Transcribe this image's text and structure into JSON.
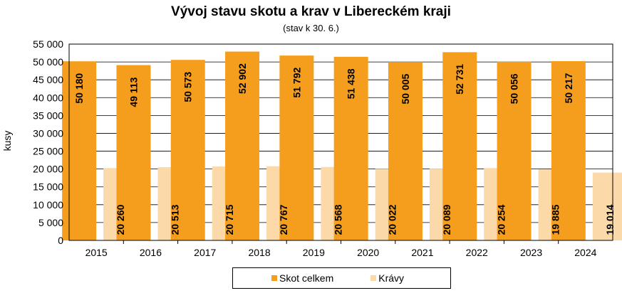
{
  "chart_data": {
    "type": "bar",
    "title": "Vývoj stavu skotu a krav v Libereckém kraji",
    "subtitle": "(stav k 30. 6.)",
    "ylabel": "kusy",
    "xlabel": "",
    "ylim": [
      0,
      55000
    ],
    "yticks": [
      "0",
      "5 000",
      "10 000",
      "15 000",
      "20 000",
      "25 000",
      "30 000",
      "35 000",
      "40 000",
      "45 000",
      "50 000",
      "55 000"
    ],
    "ytick_values": [
      0,
      5000,
      10000,
      15000,
      20000,
      25000,
      30000,
      35000,
      40000,
      45000,
      50000,
      55000
    ],
    "grid": true,
    "legend_position": "bottom",
    "categories": [
      "2015",
      "2016",
      "2017",
      "2018",
      "2019",
      "2020",
      "2021",
      "2022",
      "2023",
      "2024"
    ],
    "series": [
      {
        "name": "Skot celkem",
        "color": "#F59E1E",
        "values": [
          50180,
          49113,
          50573,
          52902,
          51792,
          51438,
          50005,
          52731,
          50056,
          50217
        ],
        "labels": [
          "50 180",
          "49 113",
          "50 573",
          "52 902",
          "51 792",
          "51 438",
          "50 005",
          "52 731",
          "50 056",
          "50 217"
        ]
      },
      {
        "name": "Krávy",
        "color": "#FCD9A8",
        "values": [
          20260,
          20513,
          20715,
          20767,
          20568,
          20022,
          20089,
          20254,
          19885,
          19014
        ],
        "labels": [
          "20 260",
          "20 513",
          "20 715",
          "20 767",
          "20 568",
          "20 022",
          "20 089",
          "20 254",
          "19 885",
          "19 014"
        ]
      }
    ]
  }
}
